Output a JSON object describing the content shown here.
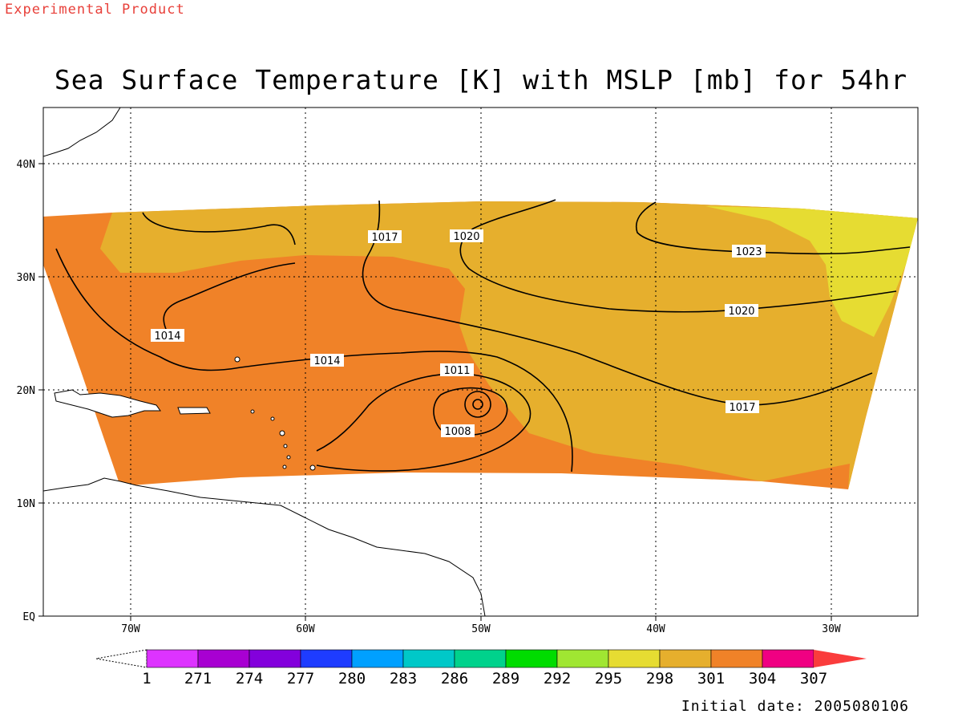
{
  "banner": "Experimental Product",
  "title": "Sea Surface Temperature [K] with MSLP [mb] for 54hr",
  "initial_date": "Initial date: 2005080106",
  "chart_data": {
    "type": "map",
    "field": "Sea Surface Temperature",
    "field_units": "K",
    "contour_field": "MSLP",
    "contour_units": "mb",
    "forecast_hour": "54hr",
    "lon_ticks": [
      "70W",
      "60W",
      "50W",
      "40W",
      "30W"
    ],
    "lat_ticks": [
      "EQ",
      "10N",
      "20N",
      "30N",
      "40N"
    ],
    "lon_range": [
      -75,
      -25
    ],
    "lat_range": [
      0,
      45
    ],
    "grid": true,
    "colorbar_labels": [
      "1",
      "271",
      "274",
      "277",
      "280",
      "283",
      "286",
      "289",
      "292",
      "295",
      "298",
      "301",
      "304",
      "307"
    ],
    "colorbar_colors": [
      "#dd33ff",
      "#a800d2",
      "#8300dc",
      "#1e3cff",
      "#00a0ff",
      "#00c8c8",
      "#00d28c",
      "#00dc00",
      "#a0e632",
      "#e6dc32",
      "#e6af2d",
      "#f08228",
      "#f00082",
      "#fa3c3c"
    ],
    "sst_regions": [
      {
        "range": "301-304",
        "color": "#f08228",
        "area": "western and southern basin"
      },
      {
        "range": "298-301",
        "color": "#e6af2d",
        "area": "central and northern basin"
      },
      {
        "range": "295-298",
        "color": "#e6dc32",
        "area": "far northeast"
      }
    ],
    "isobar_labels": [
      {
        "value": "1017",
        "location": "north-central"
      },
      {
        "value": "1020",
        "location": "north-central"
      },
      {
        "value": "1023",
        "location": "northeast"
      },
      {
        "value": "1020",
        "location": "east"
      },
      {
        "value": "1014",
        "location": "west"
      },
      {
        "value": "1014",
        "location": "central"
      },
      {
        "value": "1011",
        "location": "near low"
      },
      {
        "value": "1008",
        "location": "near low"
      },
      {
        "value": "1017",
        "location": "southeast"
      }
    ],
    "low_center": {
      "lat": 19,
      "lon": -50
    }
  }
}
